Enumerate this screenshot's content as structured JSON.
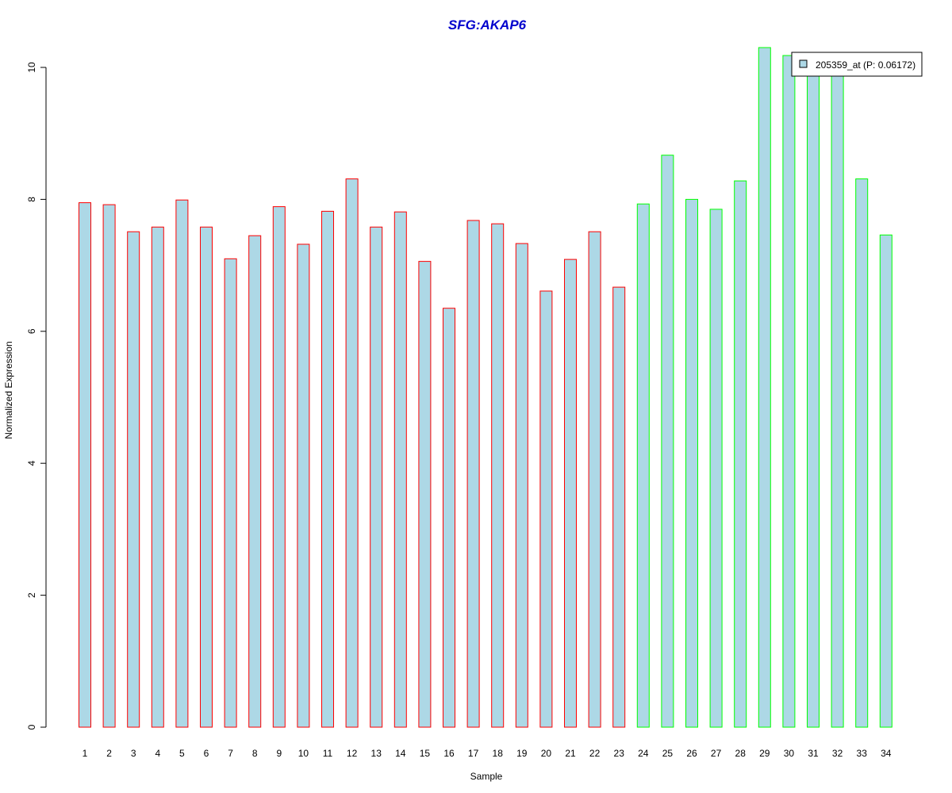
{
  "chart_data": {
    "type": "bar",
    "title": "SFG:AKAP6",
    "xlabel": "Sample",
    "ylabel": "Normalized Expression",
    "categories": [
      "1",
      "2",
      "3",
      "4",
      "5",
      "6",
      "7",
      "8",
      "9",
      "10",
      "11",
      "12",
      "13",
      "14",
      "15",
      "16",
      "17",
      "18",
      "19",
      "20",
      "21",
      "22",
      "23",
      "24",
      "25",
      "26",
      "27",
      "28",
      "29",
      "30",
      "31",
      "32",
      "33",
      "34"
    ],
    "series": [
      {
        "name": "205359_at (P: 0.06172)",
        "values": [
          7.95,
          7.92,
          7.51,
          7.58,
          7.99,
          7.58,
          7.1,
          7.45,
          7.89,
          7.32,
          7.82,
          8.31,
          7.58,
          7.81,
          7.06,
          6.35,
          7.68,
          7.63,
          7.33,
          6.61,
          7.09,
          7.51,
          6.67,
          7.93,
          8.67,
          8.0,
          7.85,
          8.28,
          10.3,
          10.18,
          9.95,
          9.9,
          8.31,
          7.46
        ]
      }
    ],
    "groups": [
      1,
      1,
      1,
      1,
      1,
      1,
      1,
      1,
      1,
      1,
      1,
      1,
      1,
      1,
      1,
      1,
      1,
      1,
      1,
      1,
      1,
      1,
      1,
      2,
      2,
      2,
      2,
      2,
      2,
      2,
      2,
      2,
      2,
      2
    ],
    "yticks": [
      0,
      2,
      4,
      6,
      8,
      10
    ],
    "ylim": [
      0,
      10.3
    ],
    "legend_position": "top-right",
    "grid": false
  },
  "colors": {
    "bar_fill": "#add8e6",
    "group1_border": "#ff0000",
    "group2_border": "#00ff00",
    "title": "#0000cd",
    "axis": "#000000"
  }
}
